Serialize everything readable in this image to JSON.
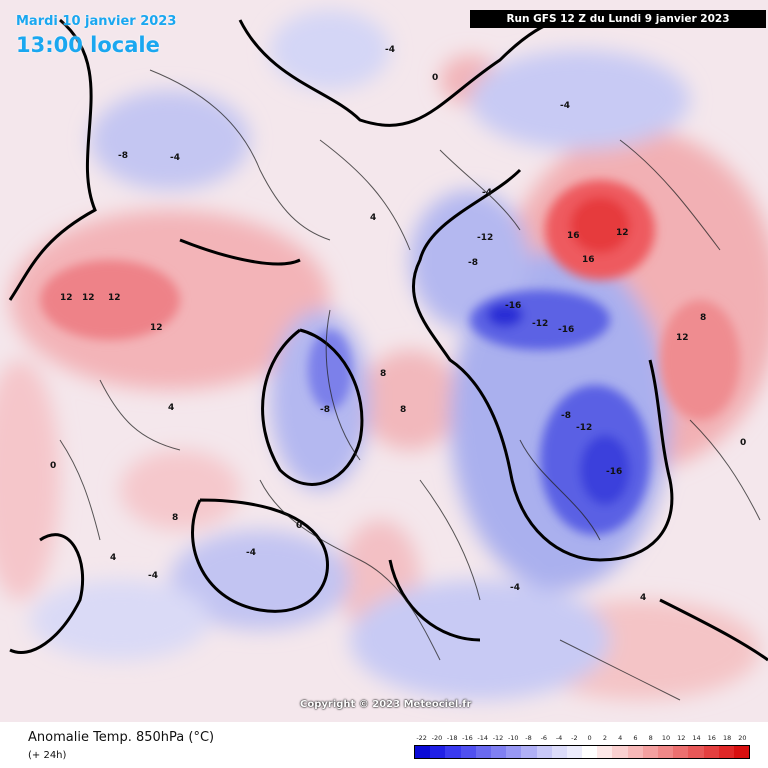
{
  "header": {
    "date": "Mardi 10 janvier 2023",
    "local_time": "13:00 locale",
    "run_info": "Run GFS 12 Z du Lundi 9 janvier 2023"
  },
  "map": {
    "copyright": "Copyright © 2023 Meteociel.fr",
    "contour_labels": [
      "-4",
      "-4",
      "-4",
      "-4",
      "-4",
      "-4",
      "-4",
      "-8",
      "-8",
      "-8",
      "-8",
      "-12",
      "-12",
      "-12",
      "-16",
      "-16",
      "-16",
      "0",
      "0",
      "0",
      "0",
      "4",
      "4",
      "4",
      "4",
      "8",
      "8",
      "8",
      "8",
      "12",
      "12",
      "12",
      "12",
      "12",
      "12",
      "16",
      "16"
    ]
  },
  "legend": {
    "title": "Anomalie Temp. 850hPa (°C)",
    "subtitle": "(+ 24h)",
    "scale": [
      "-22",
      "-20",
      "-18",
      "-16",
      "-14",
      "-12",
      "-10",
      "-8",
      "-6",
      "-4",
      "-2",
      "0",
      "2",
      "4",
      "6",
      "8",
      "10",
      "12",
      "14",
      "16",
      "18",
      "20"
    ],
    "colors": [
      "#0a0ad6",
      "#2020e6",
      "#3a3af0",
      "#5050f0",
      "#6a6af0",
      "#8080f2",
      "#9898f4",
      "#b0b0f6",
      "#c8c8f8",
      "#dcdcfa",
      "#ececfc",
      "#ffffff",
      "#fde8e8",
      "#fad0d0",
      "#f7b8b8",
      "#f4a0a0",
      "#f08888",
      "#ec7070",
      "#e85858",
      "#e44040",
      "#e02828",
      "#d81010"
    ]
  }
}
